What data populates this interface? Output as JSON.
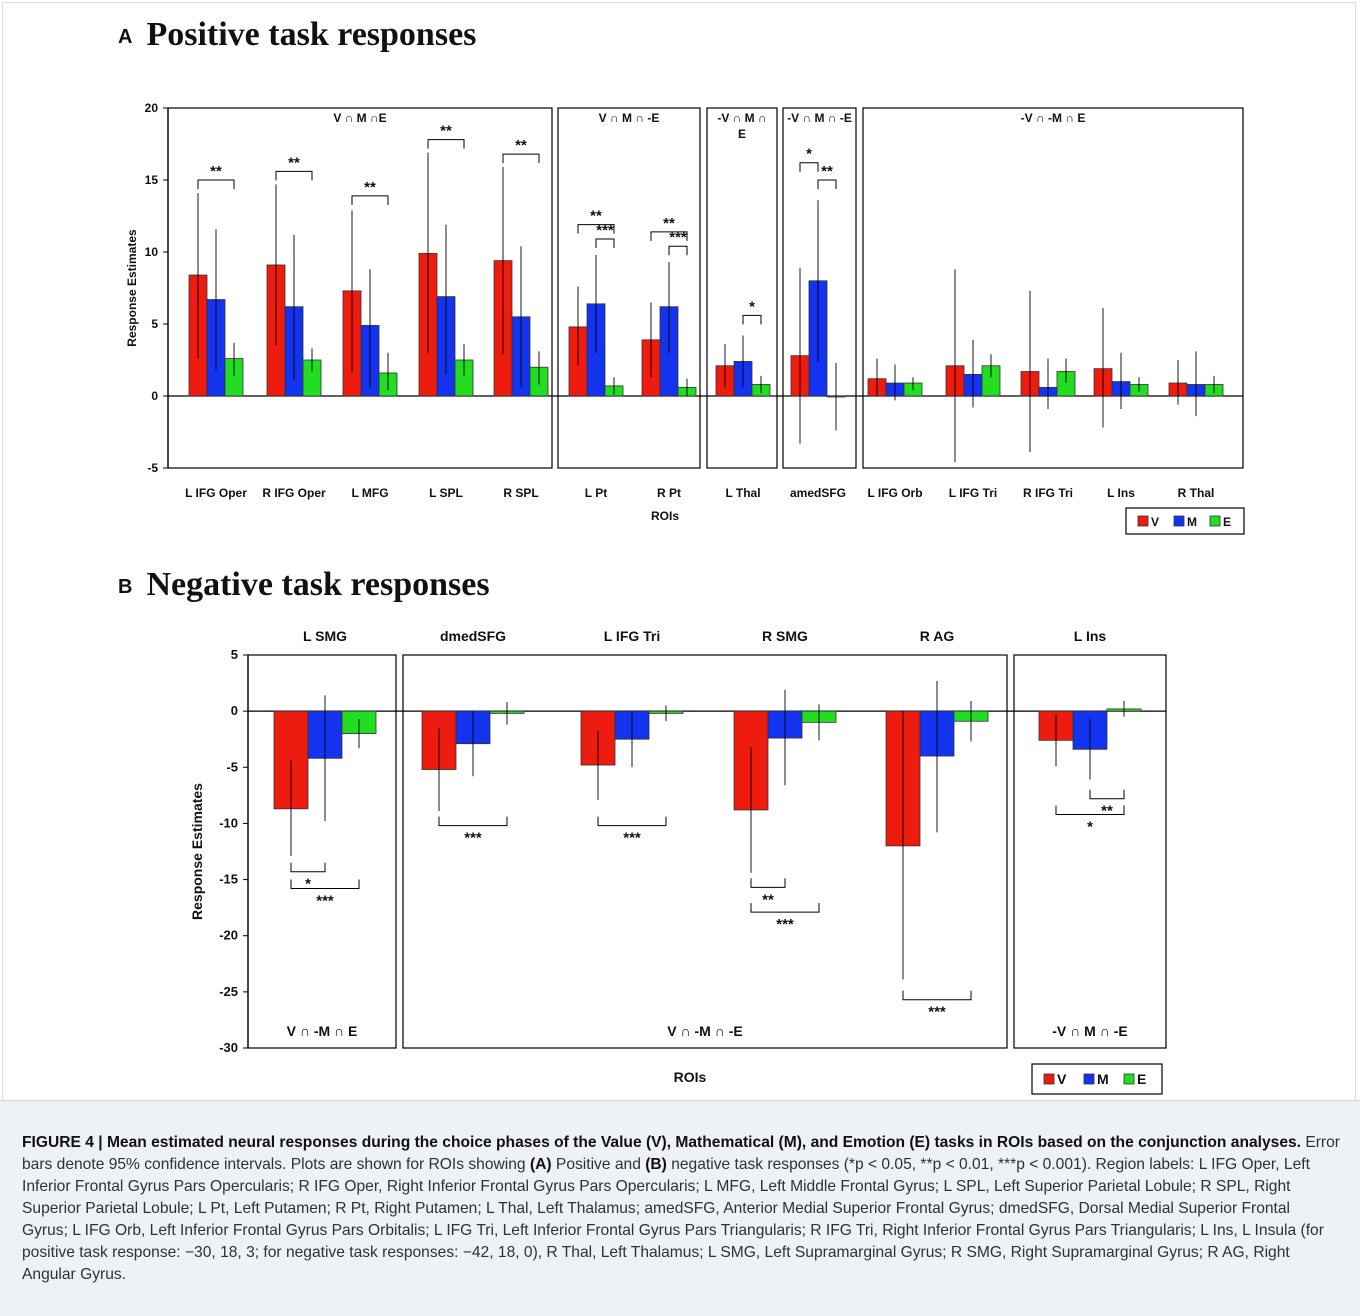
{
  "panel_a": {
    "letter": "A",
    "title": "Positive task responses"
  },
  "panel_b": {
    "letter": "B",
    "title": "Negative task responses"
  },
  "colors": {
    "V": "#ee1c0e",
    "M": "#1433ee",
    "E": "#22dd22"
  },
  "chart_data": [
    {
      "type": "bar",
      "title": "Positive task responses",
      "xlabel": "ROIs",
      "ylabel": "Response Estimates",
      "ylim": [
        -5,
        20
      ],
      "yticks": [
        20,
        15,
        10,
        5,
        0,
        -5
      ],
      "legend": [
        "V",
        "M",
        "E"
      ],
      "legend_position": "bottom-right",
      "categories": [
        "L IFG Oper",
        "R IFG Oper",
        "L MFG",
        "L SPL",
        "R SPL",
        "L Pt",
        "R Pt",
        "L Thal",
        "amedSFG",
        "L IFG Orb",
        "L IFG Tri",
        "R IFG Tri",
        "L Ins",
        "R Thal"
      ],
      "series": [
        {
          "name": "V",
          "values": [
            8.4,
            9.1,
            7.3,
            9.9,
            9.4,
            4.8,
            3.9,
            2.1,
            2.8,
            1.2,
            2.1,
            1.7,
            1.9,
            0.9
          ],
          "ci_low": [
            2.6,
            3.5,
            1.6,
            3.0,
            2.9,
            2.1,
            1.3,
            0.6,
            -3.3,
            0.0,
            -4.6,
            -3.9,
            -2.2,
            -0.6
          ],
          "ci_high": [
            14.1,
            14.7,
            12.9,
            16.9,
            15.9,
            7.6,
            6.5,
            3.6,
            8.9,
            2.6,
            8.8,
            7.3,
            6.1,
            2.5
          ]
        },
        {
          "name": "M",
          "values": [
            6.7,
            6.2,
            4.9,
            6.9,
            5.5,
            6.4,
            6.2,
            2.4,
            8.0,
            0.9,
            1.5,
            0.6,
            1.0,
            0.8
          ],
          "ci_low": [
            1.8,
            1.1,
            0.6,
            1.5,
            0.6,
            3.0,
            3.0,
            0.6,
            2.4,
            -0.3,
            -0.8,
            -0.9,
            -0.9,
            -1.4
          ],
          "ci_high": [
            11.6,
            11.2,
            8.8,
            11.9,
            10.4,
            9.8,
            9.3,
            4.2,
            13.6,
            2.2,
            3.9,
            2.6,
            3.0,
            3.1
          ]
        },
        {
          "name": "E",
          "values": [
            2.6,
            2.5,
            1.6,
            2.5,
            2.0,
            0.7,
            0.6,
            0.8,
            0.0,
            0.9,
            2.1,
            1.7,
            0.8,
            0.8
          ],
          "ci_low": [
            1.4,
            1.7,
            0.4,
            1.4,
            0.8,
            0.1,
            0.0,
            0.2,
            -2.4,
            0.4,
            1.3,
            0.9,
            0.3,
            0.2
          ],
          "ci_high": [
            3.7,
            3.3,
            3.0,
            3.6,
            3.1,
            1.3,
            1.2,
            1.4,
            2.3,
            1.3,
            2.9,
            2.6,
            1.3,
            1.4
          ]
        }
      ],
      "groups": [
        {
          "label": "V ∩ M ∩E",
          "from": 0,
          "to": 4
        },
        {
          "label": "V ∩ M ∩ -E",
          "from": 5,
          "to": 6
        },
        {
          "label": "-V ∩ M ∩ E",
          "from": 7,
          "to": 7
        },
        {
          "label": "-V ∩ M ∩ -E",
          "from": 8,
          "to": 8
        },
        {
          "label": "-V ∩ -M ∩ E",
          "from": 9,
          "to": 13
        }
      ],
      "significance": [
        {
          "category": 0,
          "bars": [
            "V",
            "E"
          ],
          "label": "**"
        },
        {
          "category": 1,
          "bars": [
            "V",
            "E"
          ],
          "label": "**"
        },
        {
          "category": 2,
          "bars": [
            "V",
            "E"
          ],
          "label": "**"
        },
        {
          "category": 3,
          "bars": [
            "V",
            "E"
          ],
          "label": "**"
        },
        {
          "category": 4,
          "bars": [
            "V",
            "E"
          ],
          "label": "**"
        },
        {
          "category": 5,
          "bars": [
            "V",
            "E"
          ],
          "label": "**"
        },
        {
          "category": 5,
          "bars": [
            "M",
            "E"
          ],
          "label": "***"
        },
        {
          "category": 6,
          "bars": [
            "V",
            "E"
          ],
          "label": "**"
        },
        {
          "category": 6,
          "bars": [
            "M",
            "E"
          ],
          "label": "***"
        },
        {
          "category": 7,
          "bars": [
            "M",
            "E"
          ],
          "label": "*"
        },
        {
          "category": 8,
          "bars": [
            "V",
            "M"
          ],
          "label": "*"
        },
        {
          "category": 8,
          "bars": [
            "M",
            "E"
          ],
          "label": "**"
        }
      ]
    },
    {
      "type": "bar",
      "title": "Negative task responses",
      "xlabel": "ROIs",
      "ylabel": "Response Estimates",
      "ylim": [
        -30,
        5
      ],
      "yticks": [
        5,
        0,
        -5,
        -10,
        -15,
        -20,
        -25,
        -30
      ],
      "legend": [
        "V",
        "M",
        "E"
      ],
      "legend_position": "bottom-right",
      "categories": [
        "L SMG",
        "dmedSFG",
        "L IFG Tri",
        "R SMG",
        "R AG",
        "L Ins"
      ],
      "series": [
        {
          "name": "V",
          "values": [
            -8.7,
            -5.2,
            -4.8,
            -8.8,
            -12.0,
            -2.6
          ],
          "ci_low": [
            -12.9,
            -8.9,
            -7.9,
            -14.4,
            -23.9,
            -4.9
          ],
          "ci_high": [
            -4.4,
            -1.5,
            -1.7,
            -3.2,
            0.0,
            -0.3
          ]
        },
        {
          "name": "M",
          "values": [
            -4.2,
            -2.9,
            -2.5,
            -2.4,
            -4.0,
            -3.4
          ],
          "ci_low": [
            -9.8,
            -5.8,
            -5.0,
            -6.6,
            -10.8,
            -6.1
          ],
          "ci_high": [
            1.4,
            0.0,
            0.0,
            1.9,
            2.7,
            -0.7
          ]
        },
        {
          "name": "E",
          "values": [
            -2.0,
            -0.2,
            -0.2,
            -1.0,
            -0.9,
            0.2
          ],
          "ci_low": [
            -3.3,
            -1.2,
            -0.9,
            -2.6,
            -2.7,
            -0.5
          ],
          "ci_high": [
            -0.7,
            0.8,
            0.5,
            0.6,
            0.9,
            0.9
          ]
        }
      ],
      "groups": [
        {
          "label": "V ∩ -M ∩ E",
          "from": 0,
          "to": 0
        },
        {
          "label": "V ∩ -M ∩ -E",
          "from": 1,
          "to": 4
        },
        {
          "label": "-V ∩ M ∩ -E",
          "from": 5,
          "to": 5
        }
      ],
      "significance": [
        {
          "category": 0,
          "bars": [
            "V",
            "M"
          ],
          "label": "*"
        },
        {
          "category": 0,
          "bars": [
            "V",
            "E"
          ],
          "label": "***"
        },
        {
          "category": 1,
          "bars": [
            "V",
            "E"
          ],
          "label": "***"
        },
        {
          "category": 2,
          "bars": [
            "V",
            "E"
          ],
          "label": "***"
        },
        {
          "category": 3,
          "bars": [
            "V",
            "M"
          ],
          "label": "**"
        },
        {
          "category": 3,
          "bars": [
            "V",
            "E"
          ],
          "label": "***"
        },
        {
          "category": 4,
          "bars": [
            "V",
            "E"
          ],
          "label": "***"
        },
        {
          "category": 5,
          "bars": [
            "M",
            "E"
          ],
          "label": "**"
        },
        {
          "category": 5,
          "bars": [
            "V",
            "E"
          ],
          "label": "*"
        }
      ]
    }
  ],
  "caption": {
    "lead": "FIGURE 4 | Mean estimated neural responses during the choice phases of the Value (V), Mathematical (M), and Emotion (E) tasks in ROIs based on the conjunction analyses.",
    "text1": " Error bars denote 95% confidence intervals. Plots are shown for ROIs showing ",
    "a_ref": "(A)",
    "text2": " Positive and ",
    "b_ref": "(B)",
    "text3": " negative task responses (*p < 0.05, **p < 0.01, ***p < 0.001). Region labels: L IFG Oper, Left Inferior Frontal Gyrus Pars Opercularis; R IFG Oper, Right Inferior Frontal Gyrus Pars Opercularis; L MFG, Left Middle Frontal Gyrus; L SPL, Left Superior Parietal Lobule; R SPL, Right Superior Parietal Lobule; L Pt, Left Putamen; R Pt, Right Putamen; L Thal, Left Thalamus; amedSFG, Anterior Medial Superior Frontal Gyrus; dmedSFG, Dorsal Medial Superior Frontal Gyrus; L IFG Orb, Left Inferior Frontal Gyrus Pars Orbitalis; L IFG Tri, Left Inferior Frontal Gyrus Pars Triangularis; R IFG Tri, Right Inferior Frontal Gyrus Pars Triangularis; L Ins, L Insula (for positive task response: −30, 18, 3; for negative task responses: −42, 18, 0), R Thal, Left Thalamus; L SMG, Left Supramarginal Gyrus; R SMG, Right Supramarginal Gyrus; R AG, Right Angular Gyrus."
  }
}
